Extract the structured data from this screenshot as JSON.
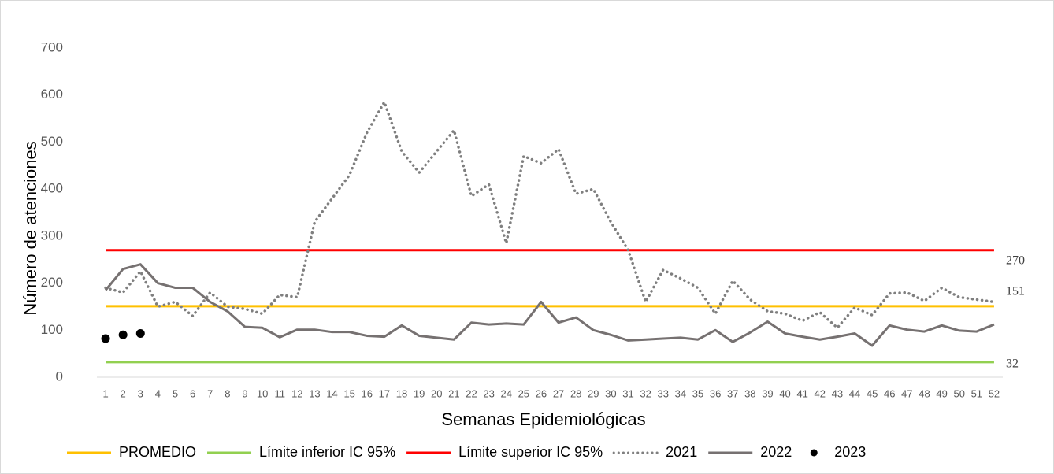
{
  "chart_data": {
    "type": "line",
    "y_label": "Número de atenciones",
    "x_label": "Semanas Epidemiológicas",
    "categories": [
      1,
      2,
      3,
      4,
      5,
      6,
      7,
      8,
      9,
      10,
      11,
      12,
      13,
      14,
      15,
      16,
      17,
      18,
      19,
      20,
      21,
      22,
      23,
      24,
      25,
      26,
      27,
      28,
      29,
      30,
      31,
      32,
      33,
      34,
      35,
      36,
      37,
      38,
      39,
      40,
      41,
      42,
      43,
      44,
      45,
      46,
      47,
      48,
      49,
      50,
      51,
      52
    ],
    "ylim": [
      0,
      700
    ],
    "yticks": [
      0,
      100,
      200,
      300,
      400,
      500,
      600,
      700
    ],
    "legend": "bottom",
    "series": [
      {
        "name": "PROMEDIO",
        "color": "#ffc000",
        "style": "solid",
        "end_label": true,
        "values": [
          151,
          151,
          151,
          151,
          151,
          151,
          151,
          151,
          151,
          151,
          151,
          151,
          151,
          151,
          151,
          151,
          151,
          151,
          151,
          151,
          151,
          151,
          151,
          151,
          151,
          151,
          151,
          151,
          151,
          151,
          151,
          151,
          151,
          151,
          151,
          151,
          151,
          151,
          151,
          151,
          151,
          151,
          151,
          151,
          151,
          151,
          151,
          151,
          151,
          151,
          151,
          151
        ]
      },
      {
        "name": "Límite inferior IC 95%",
        "color": "#92d050",
        "style": "solid",
        "end_label": true,
        "values": [
          32,
          32,
          32,
          32,
          32,
          32,
          32,
          32,
          32,
          32,
          32,
          32,
          32,
          32,
          32,
          32,
          32,
          32,
          32,
          32,
          32,
          32,
          32,
          32,
          32,
          32,
          32,
          32,
          32,
          32,
          32,
          32,
          32,
          32,
          32,
          32,
          32,
          32,
          32,
          32,
          32,
          32,
          32,
          32,
          32,
          32,
          32,
          32,
          32,
          32,
          32,
          32
        ]
      },
      {
        "name": "Límite superior IC 95%",
        "color": "#ff0000",
        "style": "solid",
        "end_label": true,
        "values": [
          270,
          270,
          270,
          270,
          270,
          270,
          270,
          270,
          270,
          270,
          270,
          270,
          270,
          270,
          270,
          270,
          270,
          270,
          270,
          270,
          270,
          270,
          270,
          270,
          270,
          270,
          270,
          270,
          270,
          270,
          270,
          270,
          270,
          270,
          270,
          270,
          270,
          270,
          270,
          270,
          270,
          270,
          270,
          270,
          270,
          270,
          270,
          270,
          270,
          270,
          270,
          270
        ]
      },
      {
        "name": "2021",
        "color": "#7f7f7f",
        "style": "dotted",
        "values": [
          190,
          180,
          225,
          150,
          160,
          130,
          180,
          150,
          145,
          135,
          175,
          170,
          330,
          380,
          430,
          520,
          585,
          480,
          435,
          480,
          525,
          385,
          410,
          285,
          470,
          455,
          485,
          390,
          400,
          330,
          270,
          160,
          228,
          210,
          190,
          135,
          205,
          165,
          140,
          135,
          120,
          138,
          105,
          148,
          132,
          178,
          180,
          162,
          190,
          170,
          165,
          160
        ]
      },
      {
        "name": "2022",
        "color": "#767171",
        "style": "solid",
        "values": [
          185,
          230,
          240,
          200,
          190,
          190,
          160,
          140,
          107,
          105,
          85,
          101,
          101,
          96,
          96,
          88,
          86,
          110,
          88,
          84,
          80,
          116,
          112,
          114,
          112,
          160,
          116,
          127,
          100,
          90,
          78,
          80,
          82,
          84,
          80,
          100,
          75,
          95,
          118,
          93,
          86,
          80,
          86,
          93,
          67,
          110,
          101,
          97,
          110,
          99,
          97,
          112
        ]
      },
      {
        "name": "2023",
        "color": "#000000",
        "style": "markers",
        "values": [
          82,
          90,
          93,
          null,
          null,
          null,
          null,
          null,
          null,
          null,
          null,
          null,
          null,
          null,
          null,
          null,
          null,
          null,
          null,
          null,
          null,
          null,
          null,
          null,
          null,
          null,
          null,
          null,
          null,
          null,
          null,
          null,
          null,
          null,
          null,
          null,
          null,
          null,
          null,
          null,
          null,
          null,
          null,
          null,
          null,
          null,
          null,
          null,
          null,
          null,
          null,
          null
        ]
      }
    ]
  }
}
